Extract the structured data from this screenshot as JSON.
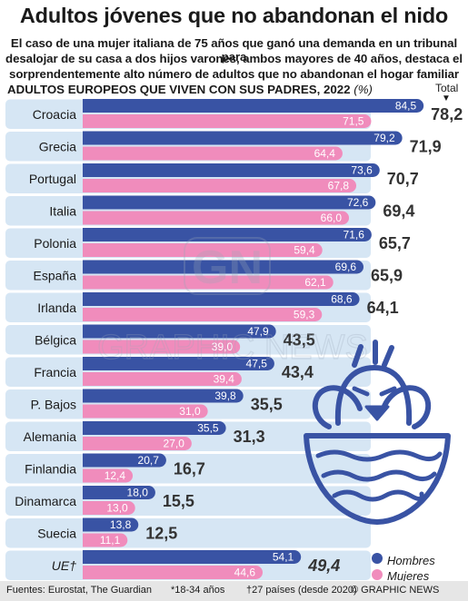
{
  "title": "Adultos jóvenes que no abandonan el nido",
  "subtitle_lines": [
    "El caso de una mujer italiana de 75 años que ganó una demanda en un tribunal para",
    "desalojar de su casa a dos hijos varones, ambos mayores de 40 años, destaca el",
    "sorprendentemente alto número de adultos que no abandonan el hogar familiar"
  ],
  "chart_heading": "ADULTOS EUROPEOS QUE VIVEN CON SUS PADRES, 2022",
  "chart_unit": "(%)",
  "total_label": "Total",
  "total_arrow": "▼",
  "footer": {
    "sources": "Fuentes: Eurostat, The Guardian",
    "note_age": "*18-34 años",
    "note_eu": "†27 países (desde 2020)",
    "credit": "© GRAPHIC NEWS"
  },
  "watermark": "GRAPHIC NEWS",
  "colors": {
    "hombres": "#3953a4",
    "mujeres": "#f08cbc",
    "row_band": "#d6e6f4",
    "icon": "#3953a4"
  },
  "chart_data": {
    "type": "bar",
    "title": "ADULTOS EUROPEOS QUE VIVEN CON SUS PADRES, 2022",
    "categories": [
      "Croacia",
      "Grecia",
      "Portugal",
      "Italia",
      "Polonia",
      "España",
      "Irlanda",
      "Bélgica",
      "Francia",
      "P. Bajos",
      "Alemania",
      "Finlandia",
      "Dinamarca",
      "Suecia",
      "UE†"
    ],
    "series": [
      {
        "name": "Hombres",
        "values": [
          84.5,
          79.2,
          73.6,
          72.6,
          71.6,
          69.6,
          68.6,
          47.9,
          47.5,
          39.8,
          35.5,
          20.7,
          18.0,
          13.8,
          54.1
        ]
      },
      {
        "name": "Mujeres",
        "values": [
          71.5,
          64.4,
          67.8,
          66.0,
          59.4,
          62.1,
          59.3,
          39.0,
          39.4,
          31.0,
          27.0,
          12.4,
          13.0,
          11.1,
          44.6
        ]
      }
    ],
    "totals": [
      78.2,
      71.9,
      70.7,
      69.4,
      65.7,
      65.9,
      64.1,
      43.5,
      43.4,
      35.5,
      31.3,
      16.7,
      15.5,
      12.5,
      49.4
    ],
    "value_labels_hombres": [
      "84,5",
      "79,2",
      "73,6",
      "72,6",
      "71,6",
      "69,6",
      "68,6",
      "47,9",
      "47,5",
      "39,8",
      "35,5",
      "20,7",
      "18,0",
      "13,8",
      "54,1"
    ],
    "value_labels_mujeres": [
      "71,5",
      "64,4",
      "67,8",
      "66,0",
      "59,4",
      "62,1",
      "59,3",
      "39,0",
      "39,4",
      "31,0",
      "27,0",
      "12,4",
      "13,0",
      "11,1",
      "44,6"
    ],
    "total_labels": [
      "78,2",
      "71,9",
      "70,7",
      "69,4",
      "65,7",
      "65,9",
      "64,1",
      "43,5",
      "43,4",
      "35,5",
      "31,3",
      "16,7",
      "15,5",
      "12,5",
      "49,4"
    ],
    "unit": "%",
    "xlim": [
      0,
      100
    ],
    "legend": [
      "Hombres",
      "Mujeres"
    ],
    "legend_position": "bottom-right"
  }
}
